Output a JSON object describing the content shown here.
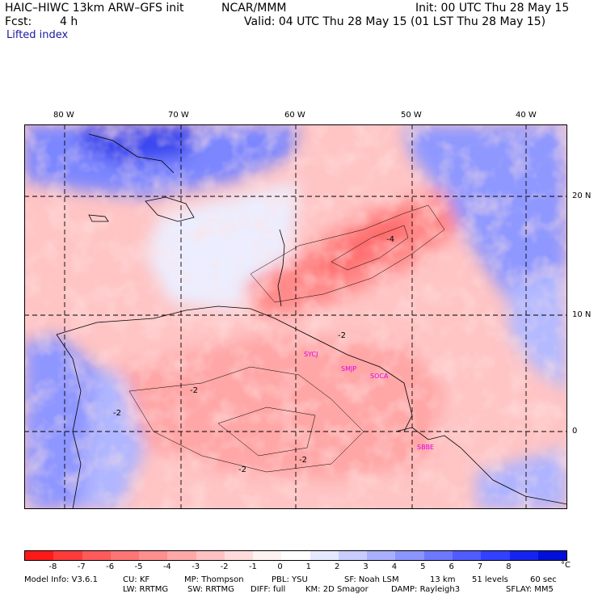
{
  "header": {
    "model_title": "HAIC–HIWC 13km ARW–GFS init",
    "institution": "NCAR/MMM",
    "init": "Init: 00 UTC Thu 28 May 15",
    "forecast_label": "Fcst:",
    "forecast_value": "4 h",
    "valid": "Valid: 04 UTC Thu 28 May 15 (01 LST Thu 28 May 15)",
    "field": "Lifted index"
  },
  "map": {
    "lon_labels": [
      "80 W",
      "70 W",
      "60 W",
      "50 W",
      "40 W"
    ],
    "lat_labels": [
      "20 N",
      "10 N",
      "0"
    ],
    "contour_labels": [
      "-4",
      "-2",
      "-2",
      "-2",
      "-2",
      "-2"
    ],
    "station_labels": [
      "SYCJ",
      "SMJP",
      "SOCA",
      "SBBE"
    ],
    "station_color": "#e000e0"
  },
  "colorbar": {
    "colors": [
      "#ff1a1a",
      "#ff3a3a",
      "#ff5a5a",
      "#ff7474",
      "#ff8e8e",
      "#ffa8a8",
      "#ffc2c2",
      "#ffdcdc",
      "#fff2f2",
      "#ffffff",
      "#e6e8ff",
      "#c8ccff",
      "#aab0ff",
      "#8c94ff",
      "#6e78ff",
      "#505cff",
      "#3240ff",
      "#1424f0",
      "#0010d8"
    ],
    "labels": [
      "-8",
      "-7",
      "-6",
      "-5",
      "-4",
      "-3",
      "-2",
      "-1",
      "0",
      "1",
      "2",
      "3",
      "4",
      "5",
      "6",
      "7",
      "8"
    ],
    "unit": "°C"
  },
  "footer": {
    "line1": [
      "Model Info: V3.6.1",
      "CU: KF",
      "MP: Thompson",
      "PBL: YSU",
      "SF: Noah LSM",
      "13 km",
      "51 levels",
      "60 sec"
    ],
    "line2": [
      "LW: RRTMG",
      "SW: RRTMG",
      "DIFF: full",
      "KM: 2D Smagor",
      "DAMP: Rayleigh3",
      "SFLAY: MM5"
    ]
  }
}
